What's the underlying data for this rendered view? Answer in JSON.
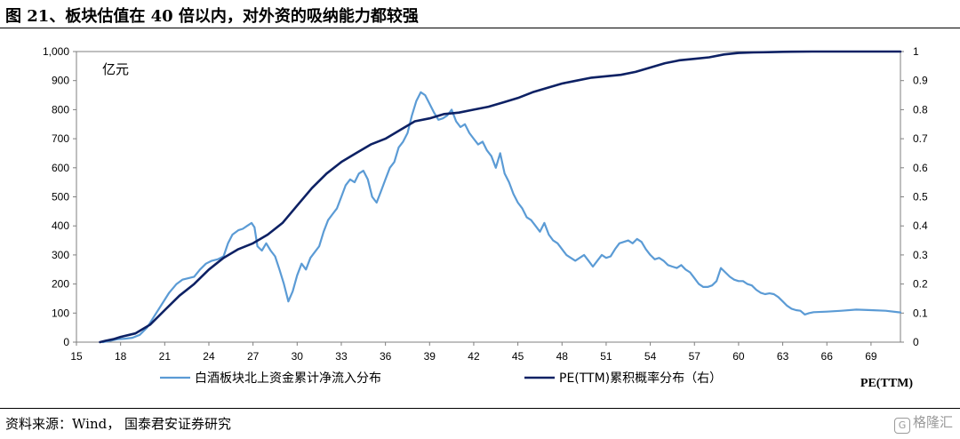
{
  "header": {
    "title": "图 21、板块估值在 40 倍以内，对外资的吸纳能力都较强"
  },
  "footer": {
    "source": "资料来源：Wind，  国泰君安证券研究"
  },
  "watermark": {
    "icon": "G",
    "text": "格隆汇"
  },
  "chart_data": {
    "type": "line",
    "unit_label": "亿元",
    "xlabel": "PE(TTM)",
    "x_ticks": [
      15,
      18,
      21,
      24,
      27,
      30,
      33,
      36,
      39,
      42,
      45,
      48,
      51,
      54,
      57,
      60,
      63,
      66,
      69
    ],
    "xlim": [
      15,
      71
    ],
    "y_left_ticks": [
      "0",
      "100",
      "200",
      "300",
      "400",
      "500",
      "600",
      "700",
      "800",
      "900",
      "1,000"
    ],
    "y_left_lim": [
      0,
      1000
    ],
    "y_right_ticks": [
      "0",
      "0.1",
      "0.2",
      "0.3",
      "0.4",
      "0.5",
      "0.6",
      "0.7",
      "0.8",
      "0.9",
      "1"
    ],
    "y_right_lim": [
      0,
      1
    ],
    "series": [
      {
        "name": "白酒板块北上资金累计净流入分布",
        "axis": "left",
        "color": "#5b9bd5",
        "points": [
          [
            16.8,
            0
          ],
          [
            17.3,
            5
          ],
          [
            17.8,
            10
          ],
          [
            18.3,
            12
          ],
          [
            18.8,
            15
          ],
          [
            19.3,
            25
          ],
          [
            19.8,
            50
          ],
          [
            20.3,
            90
          ],
          [
            20.8,
            130
          ],
          [
            21.3,
            170
          ],
          [
            21.8,
            200
          ],
          [
            22.2,
            215
          ],
          [
            22.6,
            220
          ],
          [
            23.0,
            225
          ],
          [
            23.4,
            250
          ],
          [
            23.8,
            270
          ],
          [
            24.2,
            280
          ],
          [
            24.6,
            285
          ],
          [
            25.0,
            295
          ],
          [
            25.3,
            340
          ],
          [
            25.6,
            370
          ],
          [
            26.0,
            385
          ],
          [
            26.3,
            390
          ],
          [
            26.6,
            400
          ],
          [
            26.9,
            410
          ],
          [
            27.1,
            395
          ],
          [
            27.3,
            330
          ],
          [
            27.6,
            315
          ],
          [
            27.9,
            340
          ],
          [
            28.2,
            315
          ],
          [
            28.5,
            295
          ],
          [
            28.8,
            250
          ],
          [
            29.1,
            200
          ],
          [
            29.4,
            140
          ],
          [
            29.7,
            175
          ],
          [
            30.0,
            230
          ],
          [
            30.3,
            270
          ],
          [
            30.6,
            250
          ],
          [
            30.9,
            290
          ],
          [
            31.2,
            310
          ],
          [
            31.5,
            330
          ],
          [
            31.8,
            380
          ],
          [
            32.1,
            420
          ],
          [
            32.4,
            440
          ],
          [
            32.7,
            460
          ],
          [
            33.0,
            500
          ],
          [
            33.3,
            540
          ],
          [
            33.6,
            560
          ],
          [
            33.9,
            550
          ],
          [
            34.2,
            580
          ],
          [
            34.5,
            590
          ],
          [
            34.8,
            560
          ],
          [
            35.1,
            500
          ],
          [
            35.4,
            480
          ],
          [
            35.7,
            520
          ],
          [
            36.0,
            560
          ],
          [
            36.3,
            600
          ],
          [
            36.6,
            620
          ],
          [
            36.9,
            670
          ],
          [
            37.2,
            690
          ],
          [
            37.5,
            720
          ],
          [
            37.8,
            780
          ],
          [
            38.1,
            830
          ],
          [
            38.4,
            860
          ],
          [
            38.7,
            850
          ],
          [
            39.0,
            820
          ],
          [
            39.3,
            790
          ],
          [
            39.6,
            765
          ],
          [
            39.9,
            770
          ],
          [
            40.2,
            780
          ],
          [
            40.5,
            800
          ],
          [
            40.8,
            760
          ],
          [
            41.1,
            740
          ],
          [
            41.4,
            750
          ],
          [
            41.7,
            720
          ],
          [
            42.0,
            700
          ],
          [
            42.3,
            680
          ],
          [
            42.6,
            690
          ],
          [
            42.9,
            660
          ],
          [
            43.2,
            640
          ],
          [
            43.5,
            600
          ],
          [
            43.8,
            650
          ],
          [
            44.1,
            580
          ],
          [
            44.4,
            550
          ],
          [
            44.7,
            510
          ],
          [
            45.0,
            480
          ],
          [
            45.3,
            460
          ],
          [
            45.6,
            430
          ],
          [
            45.9,
            420
          ],
          [
            46.2,
            400
          ],
          [
            46.5,
            380
          ],
          [
            46.8,
            410
          ],
          [
            47.1,
            370
          ],
          [
            47.4,
            350
          ],
          [
            47.7,
            340
          ],
          [
            48.0,
            320
          ],
          [
            48.3,
            300
          ],
          [
            48.6,
            290
          ],
          [
            48.9,
            280
          ],
          [
            49.2,
            290
          ],
          [
            49.5,
            300
          ],
          [
            49.8,
            280
          ],
          [
            50.1,
            260
          ],
          [
            50.4,
            280
          ],
          [
            50.7,
            300
          ],
          [
            51.0,
            290
          ],
          [
            51.3,
            295
          ],
          [
            51.6,
            320
          ],
          [
            51.9,
            340
          ],
          [
            52.2,
            345
          ],
          [
            52.5,
            350
          ],
          [
            52.8,
            340
          ],
          [
            53.1,
            355
          ],
          [
            53.4,
            345
          ],
          [
            53.7,
            320
          ],
          [
            54.0,
            300
          ],
          [
            54.3,
            285
          ],
          [
            54.6,
            290
          ],
          [
            54.9,
            280
          ],
          [
            55.2,
            265
          ],
          [
            55.5,
            260
          ],
          [
            55.8,
            255
          ],
          [
            56.1,
            265
          ],
          [
            56.4,
            250
          ],
          [
            56.7,
            240
          ],
          [
            57.0,
            220
          ],
          [
            57.3,
            200
          ],
          [
            57.6,
            190
          ],
          [
            57.9,
            190
          ],
          [
            58.2,
            195
          ],
          [
            58.5,
            210
          ],
          [
            58.8,
            255
          ],
          [
            59.1,
            240
          ],
          [
            59.4,
            225
          ],
          [
            59.7,
            215
          ],
          [
            60.0,
            210
          ],
          [
            60.3,
            210
          ],
          [
            60.6,
            200
          ],
          [
            60.9,
            195
          ],
          [
            61.2,
            180
          ],
          [
            61.5,
            170
          ],
          [
            61.8,
            165
          ],
          [
            62.1,
            168
          ],
          [
            62.4,
            165
          ],
          [
            62.7,
            155
          ],
          [
            63.0,
            140
          ],
          [
            63.3,
            125
          ],
          [
            63.6,
            115
          ],
          [
            63.9,
            110
          ],
          [
            64.2,
            108
          ],
          [
            64.5,
            95
          ],
          [
            64.8,
            100
          ],
          [
            65.1,
            103
          ],
          [
            66.0,
            105
          ],
          [
            67.0,
            108
          ],
          [
            68.0,
            112
          ],
          [
            69.0,
            110
          ],
          [
            70.0,
            108
          ],
          [
            71.0,
            102
          ]
        ]
      },
      {
        "name": "PE(TTM)累积概率分布（右）",
        "axis": "right",
        "color": "#0d2164",
        "points": [
          [
            16.6,
            0
          ],
          [
            17.0,
            0.005
          ],
          [
            17.5,
            0.01
          ],
          [
            18.0,
            0.018
          ],
          [
            19.0,
            0.03
          ],
          [
            20.0,
            0.06
          ],
          [
            21.0,
            0.11
          ],
          [
            22.0,
            0.16
          ],
          [
            23.0,
            0.2
          ],
          [
            24.0,
            0.25
          ],
          [
            25.0,
            0.29
          ],
          [
            26.0,
            0.32
          ],
          [
            27.0,
            0.34
          ],
          [
            28.0,
            0.37
          ],
          [
            29.0,
            0.41
          ],
          [
            30.0,
            0.47
          ],
          [
            31.0,
            0.53
          ],
          [
            32.0,
            0.58
          ],
          [
            33.0,
            0.62
          ],
          [
            34.0,
            0.65
          ],
          [
            35.0,
            0.68
          ],
          [
            36.0,
            0.7
          ],
          [
            37.0,
            0.73
          ],
          [
            38.0,
            0.76
          ],
          [
            39.0,
            0.77
          ],
          [
            40.0,
            0.785
          ],
          [
            41.0,
            0.79
          ],
          [
            42.0,
            0.8
          ],
          [
            43.0,
            0.81
          ],
          [
            44.0,
            0.825
          ],
          [
            45.0,
            0.84
          ],
          [
            46.0,
            0.86
          ],
          [
            47.0,
            0.875
          ],
          [
            48.0,
            0.89
          ],
          [
            49.0,
            0.9
          ],
          [
            50.0,
            0.91
          ],
          [
            51.0,
            0.915
          ],
          [
            52.0,
            0.92
          ],
          [
            53.0,
            0.93
          ],
          [
            54.0,
            0.945
          ],
          [
            55.0,
            0.96
          ],
          [
            56.0,
            0.97
          ],
          [
            57.0,
            0.975
          ],
          [
            58.0,
            0.98
          ],
          [
            59.0,
            0.99
          ],
          [
            60.0,
            0.995
          ],
          [
            61.0,
            0.997
          ],
          [
            62.0,
            0.998
          ],
          [
            63.0,
            0.999
          ],
          [
            65.0,
            1.0
          ],
          [
            71.0,
            1.0
          ]
        ]
      }
    ]
  }
}
